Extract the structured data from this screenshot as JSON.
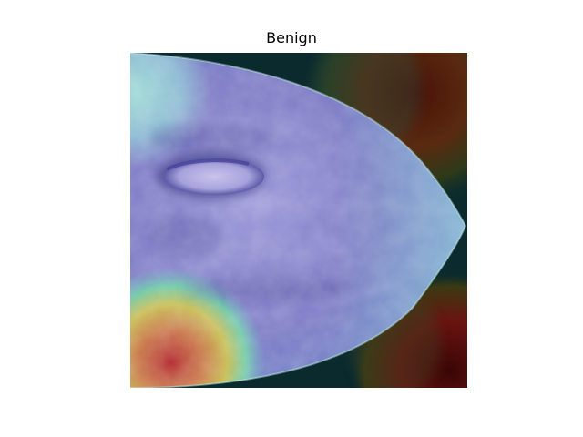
{
  "figure": {
    "title": "Benign"
  },
  "image": {
    "description_name": "mammogram-heatmap-overlay",
    "colormap": "jet",
    "colors": {
      "background_dark": "#0a2a2e",
      "tissue_base": "#7a78c8",
      "tissue_light": "#b9b3e6",
      "edge_cyan": "#9fe6df",
      "hot_red": "#b8333a",
      "hot_orange": "#d99a45",
      "hot_yellow": "#c8c24a",
      "corner_brown": "#5a1a0e",
      "corner_red": "#6a0e0e"
    }
  }
}
